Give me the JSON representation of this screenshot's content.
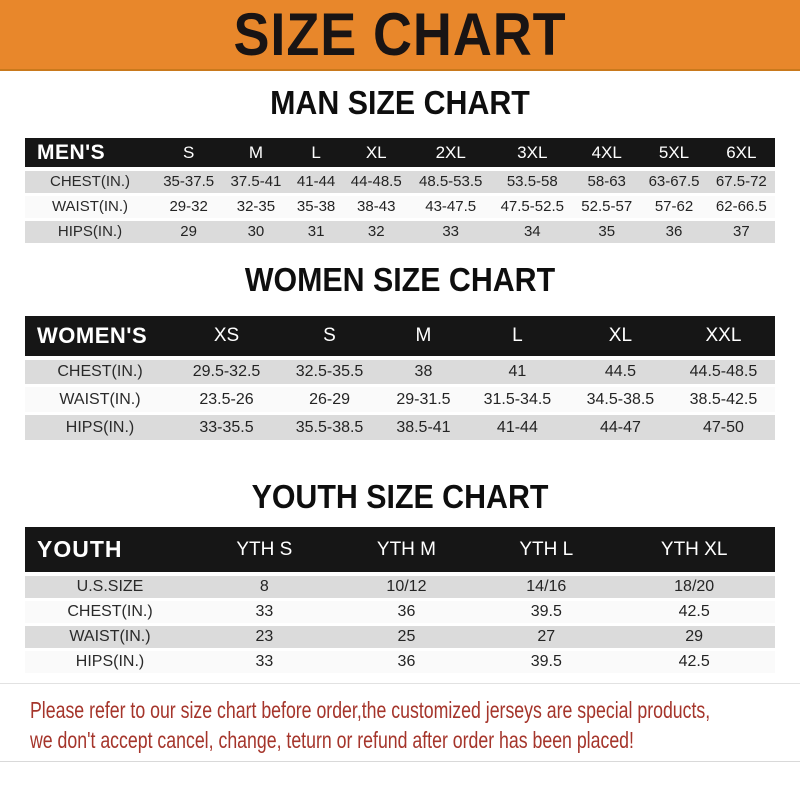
{
  "banner": {
    "title": "SIZE CHART"
  },
  "man": {
    "heading": "MAN SIZE CHART",
    "corner": "MEN'S",
    "sizes": [
      "S",
      "M",
      "L",
      "XL",
      "2XL",
      "3XL",
      "4XL",
      "5XL",
      "6XL"
    ],
    "rows": [
      {
        "label": "CHEST(IN.)",
        "values": [
          "35-37.5",
          "37.5-41",
          "41-44",
          "44-48.5",
          "48.5-53.5",
          "53.5-58",
          "58-63",
          "63-67.5",
          "67.5-72"
        ]
      },
      {
        "label": "WAIST(IN.)",
        "values": [
          "29-32",
          "32-35",
          "35-38",
          "38-43",
          "43-47.5",
          "47.5-52.5",
          "52.5-57",
          "57-62",
          "62-66.5"
        ]
      },
      {
        "label": "HIPS(IN.)",
        "values": [
          "29",
          "30",
          "31",
          "32",
          "33",
          "34",
          "35",
          "36",
          "37"
        ]
      }
    ]
  },
  "women": {
    "heading": "WOMEN SIZE CHART",
    "corner": "WOMEN'S",
    "sizes": [
      "XS",
      "S",
      "M",
      "L",
      "XL",
      "XXL"
    ],
    "rows": [
      {
        "label": "CHEST(IN.)",
        "values": [
          "29.5-32.5",
          "32.5-35.5",
          "38",
          "41",
          "44.5",
          "44.5-48.5"
        ]
      },
      {
        "label": "WAIST(IN.)",
        "values": [
          "23.5-26",
          "26-29",
          "29-31.5",
          "31.5-34.5",
          "34.5-38.5",
          "38.5-42.5"
        ]
      },
      {
        "label": "HIPS(IN.)",
        "values": [
          "33-35.5",
          "35.5-38.5",
          "38.5-41",
          "41-44",
          "44-47",
          "47-50"
        ]
      }
    ]
  },
  "youth": {
    "heading": "YOUTH SIZE CHART",
    "corner": "YOUTH",
    "sizes": [
      "YTH S",
      "YTH M",
      "YTH L",
      "YTH XL"
    ],
    "rows": [
      {
        "label": "U.S.SIZE",
        "values": [
          "8",
          "10/12",
          "14/16",
          "18/20"
        ]
      },
      {
        "label": "CHEST(IN.)",
        "values": [
          "33",
          "36",
          "39.5",
          "42.5"
        ]
      },
      {
        "label": "WAIST(IN.)",
        "values": [
          "23",
          "25",
          "27",
          "29"
        ]
      },
      {
        "label": "HIPS(IN.)",
        "values": [
          "33",
          "36",
          "39.5",
          "42.5"
        ]
      }
    ]
  },
  "footer": {
    "line1": "Please refer to our size chart before order,the customized jerseys are special products,",
    "line2": "we don't accept cancel, change, teturn or refund after order has been placed!"
  },
  "colors": {
    "banner_bg": "#E8872B",
    "banner_border": "#C9791C",
    "table_header_bg": "#161616",
    "row_gray": "#DBDBDB",
    "row_light": "#FAFAFA",
    "footer_red": "#A5352B"
  }
}
